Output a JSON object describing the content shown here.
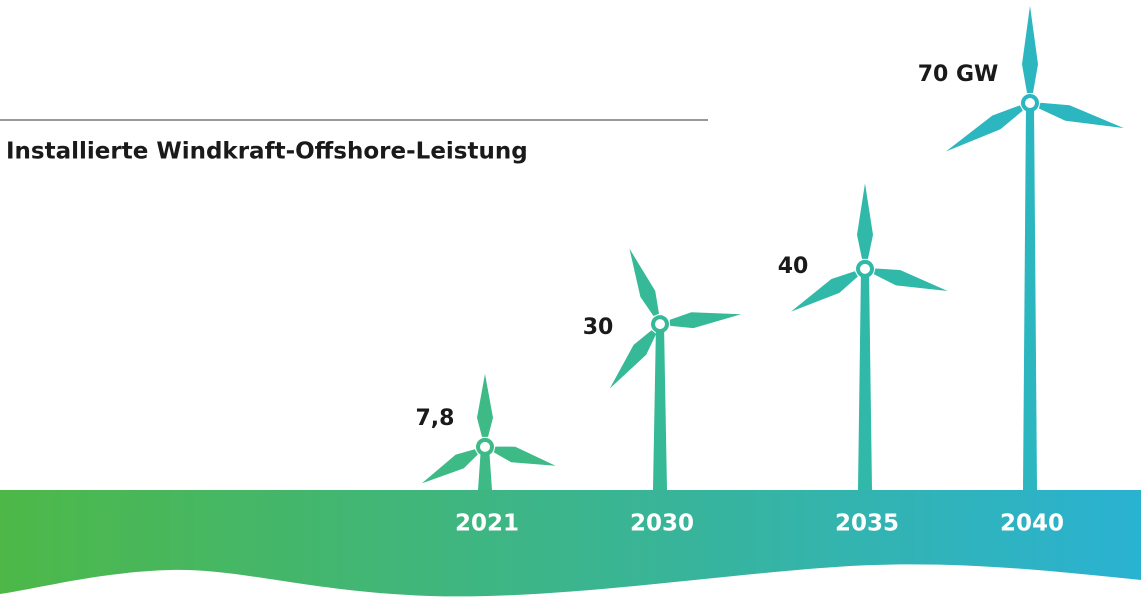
{
  "chart_data": {
    "type": "pictogram",
    "title": "Installierte Windkraft-Offshore-Leistung",
    "categories": [
      "2021",
      "2030",
      "2035",
      "2040"
    ],
    "values": [
      7.8,
      30,
      40,
      70
    ],
    "value_labels": [
      "7,8",
      "30",
      "40",
      "70 GW"
    ],
    "colors": [
      "#3dba85",
      "#36b996",
      "#30b8a8",
      "#2bb6c0"
    ],
    "band_colors": [
      "#4db848",
      "#2ab2d2"
    ]
  }
}
